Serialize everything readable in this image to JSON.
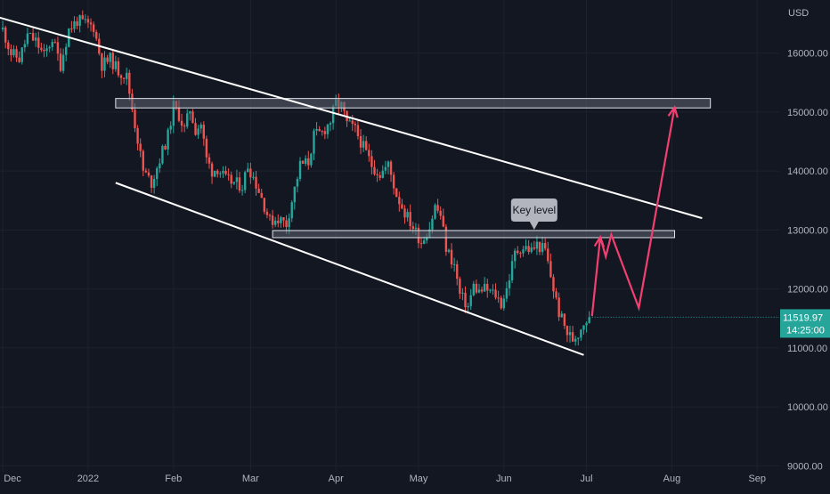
{
  "chart_data": {
    "type": "candlestick",
    "currency_label": "USD",
    "ylim": [
      8900,
      16900
    ],
    "y_ticks": [
      {
        "value": 16000,
        "label": "16000.00"
      },
      {
        "value": 15000,
        "label": "15000.00"
      },
      {
        "value": 14000,
        "label": "14000.00"
      },
      {
        "value": 13000,
        "label": "13000.00"
      },
      {
        "value": 12000,
        "label": "12000.00"
      },
      {
        "value": 11000,
        "label": "11000.00"
      },
      {
        "value": 10000,
        "label": "10000.00"
      },
      {
        "value": 9000,
        "label": "9000.00"
      }
    ],
    "x_ticks": [
      {
        "day": 0,
        "label": "Dec"
      },
      {
        "day": 31,
        "label": "2022"
      },
      {
        "day": 62,
        "label": "Feb"
      },
      {
        "day": 90,
        "label": "Mar"
      },
      {
        "day": 121,
        "label": "Apr"
      },
      {
        "day": 151,
        "label": "May"
      },
      {
        "day": 182,
        "label": "Jun"
      },
      {
        "day": 212,
        "label": "Jul"
      },
      {
        "day": 243,
        "label": "Aug"
      },
      {
        "day": 274,
        "label": "Sep"
      }
    ],
    "xlim": [
      -1,
      282
    ],
    "price_keypoints": [
      [
        0,
        16400
      ],
      [
        3,
        16000
      ],
      [
        6,
        15900
      ],
      [
        9,
        16300
      ],
      [
        12,
        16200
      ],
      [
        15,
        15950
      ],
      [
        18,
        16250
      ],
      [
        21,
        15800
      ],
      [
        24,
        16400
      ],
      [
        27,
        16550
      ],
      [
        30,
        16500
      ],
      [
        33,
        16450
      ],
      [
        36,
        15800
      ],
      [
        39,
        15900
      ],
      [
        42,
        15700
      ],
      [
        45,
        15600
      ],
      [
        48,
        14800
      ],
      [
        51,
        14000
      ],
      [
        54,
        13800
      ],
      [
        57,
        14200
      ],
      [
        60,
        14600
      ],
      [
        62,
        15100
      ],
      [
        64,
        14950
      ],
      [
        66,
        14700
      ],
      [
        68,
        15050
      ],
      [
        70,
        14700
      ],
      [
        72,
        14800
      ],
      [
        74,
        14200
      ],
      [
        76,
        14000
      ],
      [
        78,
        14050
      ],
      [
        81,
        13850
      ],
      [
        84,
        13800
      ],
      [
        87,
        13750
      ],
      [
        89,
        14100
      ],
      [
        91,
        13900
      ],
      [
        94,
        13550
      ],
      [
        97,
        13150
      ],
      [
        100,
        13200
      ],
      [
        103,
        13100
      ],
      [
        105,
        13500
      ],
      [
        108,
        14100
      ],
      [
        111,
        14150
      ],
      [
        113,
        14600
      ],
      [
        116,
        14650
      ],
      [
        119,
        14850
      ],
      [
        121,
        15150
      ],
      [
        123,
        15100
      ],
      [
        125,
        14800
      ],
      [
        128,
        14700
      ],
      [
        131,
        14400
      ],
      [
        134,
        14100
      ],
      [
        137,
        13950
      ],
      [
        140,
        14100
      ],
      [
        143,
        13600
      ],
      [
        146,
        13300
      ],
      [
        149,
        13050
      ],
      [
        152,
        12800
      ],
      [
        155,
        13050
      ],
      [
        157,
        13400
      ],
      [
        159,
        13250
      ],
      [
        161,
        12700
      ],
      [
        164,
        12400
      ],
      [
        166,
        11900
      ],
      [
        169,
        11700
      ],
      [
        171,
        12050
      ],
      [
        173,
        11950
      ],
      [
        175,
        12000
      ],
      [
        177,
        11950
      ],
      [
        179,
        11900
      ],
      [
        181,
        11750
      ],
      [
        183,
        12000
      ],
      [
        186,
        12600
      ],
      [
        188,
        12700
      ],
      [
        190,
        12700
      ],
      [
        192,
        12650
      ],
      [
        194,
        12750
      ],
      [
        197,
        12650
      ],
      [
        200,
        12000
      ],
      [
        202,
        11600
      ],
      [
        205,
        11250
      ],
      [
        207,
        11150
      ],
      [
        209,
        11250
      ],
      [
        211,
        11450
      ],
      [
        213,
        11520
      ]
    ],
    "series": [
      {
        "name": "",
        "last_value": 11519.97
      }
    ],
    "price_label": "11519.97",
    "countdown_label": "14:25:00",
    "annotation": "Key level",
    "channel_lines": [
      {
        "role": "upper",
        "from": [
          -7,
          16680
        ],
        "to": [
          254,
          13200
        ]
      },
      {
        "role": "lower",
        "from": [
          41,
          13800
        ],
        "to": [
          211,
          10880
        ]
      }
    ],
    "zones": [
      {
        "role": "resistance",
        "day_from": 41,
        "day_to": 257,
        "y_from": 15070,
        "y_to": 15230
      },
      {
        "role": "key-level",
        "day_from": 98,
        "day_to": 244,
        "y_from": 12870,
        "y_to": 12990
      }
    ],
    "projection_path": [
      [
        214,
        11540
      ],
      [
        217,
        12880
      ],
      [
        219,
        12550
      ],
      [
        221,
        12920
      ],
      [
        231,
        11680
      ],
      [
        244,
        15080
      ]
    ],
    "colors": {
      "background": "#131722",
      "up": "#26a69a",
      "down": "#ef5350",
      "channel": "#ffffff",
      "zone": "#5d6270",
      "projection": "#f23f6f",
      "grid": "#1e222d",
      "axis_text": "#b2b5be",
      "last_price_bg": "#26a69a",
      "callout_bg": "#b2b5be"
    }
  }
}
